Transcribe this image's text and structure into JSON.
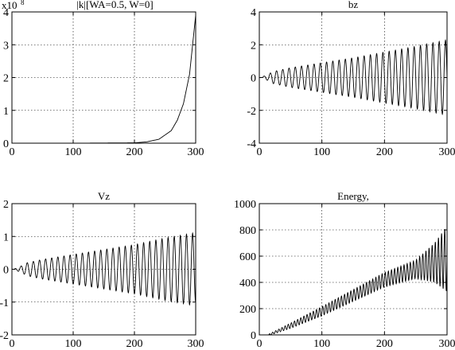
{
  "chart_data": [
    {
      "type": "line",
      "title": "|k|[WA=0.5, W=0]",
      "multiplier_label": "x10",
      "multiplier_exponent": "8",
      "xlabel": "",
      "ylabel": "",
      "xlim": [
        0,
        300
      ],
      "ylim": [
        0,
        4
      ],
      "xticks": [
        0,
        100,
        200,
        300
      ],
      "yticks": [
        0,
        1,
        2,
        3,
        4
      ],
      "xtick_labels": [
        "0",
        "100",
        "200",
        "300"
      ],
      "ytick_labels": [
        "0",
        "1",
        "2",
        "3",
        "4"
      ],
      "grid": true,
      "series": [
        {
          "shape": "exponential",
          "color": "#000000",
          "x": [
            0,
            100,
            200,
            220,
            240,
            260,
            270,
            280,
            290,
            300
          ],
          "y": [
            0,
            0,
            0.01,
            0.04,
            0.12,
            0.38,
            0.7,
            1.2,
            2.1,
            3.9
          ]
        }
      ]
    },
    {
      "type": "line",
      "title": "bz",
      "xlabel": "",
      "ylabel": "",
      "xlim": [
        0,
        300
      ],
      "ylim": [
        -4,
        4
      ],
      "xticks": [
        0,
        100,
        200,
        300
      ],
      "yticks": [
        -4,
        -2,
        0,
        2,
        4
      ],
      "xtick_labels": [
        "0",
        "100",
        "200",
        "300"
      ],
      "ytick_labels": [
        "-4",
        "-2",
        "0",
        "2",
        "4"
      ],
      "grid": true,
      "series": [
        {
          "shape": "growing-oscillation",
          "color": "#000000",
          "period": 10,
          "start": 5,
          "phase": 0,
          "envelope": {
            "x": [
              5,
              15,
              20,
              50,
              100,
              150,
              200,
              250,
              300
            ],
            "y": [
              0.05,
              0.2,
              0.35,
              0.6,
              0.9,
              1.2,
              1.55,
              1.9,
              2.3
            ]
          }
        }
      ]
    },
    {
      "type": "line",
      "title": "Vz",
      "xlabel": "",
      "ylabel": "",
      "xlim": [
        0,
        300
      ],
      "ylim": [
        -2,
        2
      ],
      "xticks": [
        0,
        100,
        200,
        300
      ],
      "yticks": [
        -2,
        -1,
        0,
        1,
        2
      ],
      "xtick_labels": [
        "0",
        "100",
        "200",
        "300"
      ],
      "ytick_labels": [
        "-2",
        "-1",
        "0",
        "1",
        "2"
      ],
      "grid": true,
      "series": [
        {
          "shape": "growing-oscillation",
          "color": "#000000",
          "period": 10,
          "start": 5,
          "phase": 1.57,
          "envelope": {
            "x": [
              5,
              15,
              25,
              50,
              100,
              150,
              200,
              250,
              295,
              300
            ],
            "y": [
              0.02,
              0.1,
              0.2,
              0.3,
              0.45,
              0.6,
              0.75,
              0.95,
              1.1,
              1.0
            ]
          }
        }
      ]
    },
    {
      "type": "line",
      "title": "Energy,",
      "xlabel": "",
      "ylabel": "",
      "xlim": [
        0,
        300
      ],
      "ylim": [
        0,
        1000
      ],
      "xticks": [
        0,
        100,
        200,
        300
      ],
      "yticks": [
        0,
        200,
        400,
        600,
        800,
        1000
      ],
      "xtick_labels": [
        "0",
        "100",
        "200",
        "300"
      ],
      "ytick_labels": [
        "0",
        "200",
        "400",
        "600",
        "800",
        "1000"
      ],
      "grid": true,
      "series": [
        {
          "shape": "growing-oscillation-with-trend",
          "color": "#000000",
          "period": 5,
          "start": 15,
          "phase": 0,
          "trend": {
            "x": [
              15,
              50,
              100,
              150,
              200,
              250,
              280,
              300
            ],
            "y": [
              0,
              70,
              180,
              300,
              420,
              500,
              550,
              580
            ]
          },
          "envelope": {
            "x": [
              15,
              50,
              100,
              150,
              200,
              250,
              280,
              300
            ],
            "y": [
              5,
              20,
              35,
              45,
              55,
              70,
              150,
              250
            ]
          }
        }
      ]
    }
  ]
}
